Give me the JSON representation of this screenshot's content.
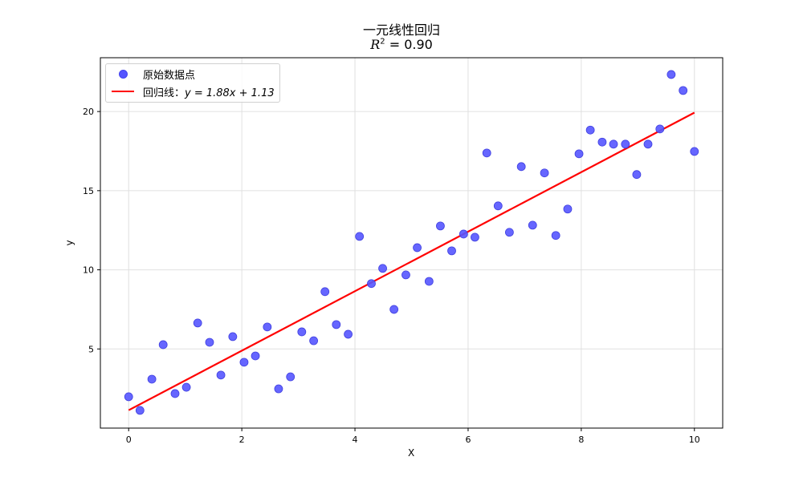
{
  "title": {
    "main": "一元线性回归",
    "subtitle_prefix": "R",
    "subtitle_sup": "2",
    "subtitle_rest": " = 0.90"
  },
  "axes": {
    "xlabel": "X",
    "ylabel": "y",
    "xticks": [
      "0",
      "2",
      "4",
      "6",
      "8",
      "10"
    ],
    "yticks": [
      "5",
      "10",
      "15",
      "20"
    ]
  },
  "legend": {
    "scatter_label": "原始数据点",
    "line_label": "回归线：",
    "line_equation": "y = 1.88x + 1.13"
  },
  "colors": {
    "points": "#5555ff",
    "line": "#ff0000",
    "grid": "#e0e0e0",
    "axes": "#000000"
  },
  "chart_data": {
    "type": "scatter",
    "title": "一元线性回归  R^2 = 0.90",
    "xlabel": "X",
    "ylabel": "y",
    "xlim": [
      -0.5,
      10.5
    ],
    "ylim": [
      0.0,
      23.4
    ],
    "grid": true,
    "legend_position": "upper left",
    "series": [
      {
        "name": "原始数据点",
        "type": "scatter",
        "color": "#5555ff",
        "x": [
          0.0,
          0.2,
          0.41,
          0.61,
          0.82,
          1.02,
          1.22,
          1.43,
          1.63,
          1.84,
          2.04,
          2.24,
          2.45,
          2.65,
          2.86,
          3.06,
          3.27,
          3.47,
          3.67,
          3.88,
          4.08,
          4.29,
          4.49,
          4.69,
          4.9,
          5.1,
          5.31,
          5.51,
          5.71,
          5.92,
          6.12,
          6.33,
          6.53,
          6.73,
          6.94,
          7.14,
          7.35,
          7.55,
          7.76,
          7.96,
          8.16,
          8.37,
          8.57,
          8.78,
          8.98,
          9.18,
          9.39,
          9.59,
          9.8,
          10.0
        ],
        "y": [
          1.98,
          1.12,
          3.09,
          5.27,
          2.18,
          2.58,
          6.64,
          5.42,
          3.35,
          5.78,
          4.16,
          4.56,
          6.39,
          2.48,
          3.24,
          6.08,
          5.52,
          8.62,
          6.54,
          5.93,
          12.11,
          9.13,
          10.09,
          7.5,
          9.68,
          11.4,
          9.27,
          12.77,
          11.2,
          12.26,
          12.06,
          17.38,
          14.04,
          12.37,
          16.52,
          12.82,
          16.12,
          12.17,
          13.84,
          17.33,
          18.83,
          18.07,
          17.94,
          17.94,
          16.02,
          17.94,
          18.9,
          22.34,
          21.33,
          17.48
        ]
      },
      {
        "name": "回归线：y = 1.88x + 1.13",
        "type": "line",
        "color": "#ff0000",
        "slope": 1.88,
        "intercept": 1.13,
        "x": [
          0,
          10
        ],
        "y": [
          1.13,
          19.93
        ]
      }
    ],
    "annotations": [
      "R^2 = 0.90"
    ]
  }
}
